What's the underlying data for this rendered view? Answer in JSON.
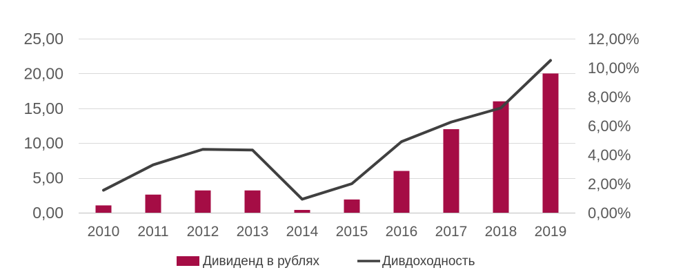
{
  "chart_data": {
    "type": "bar",
    "categories": [
      "2010",
      "2011",
      "2012",
      "2013",
      "2014",
      "2015",
      "2016",
      "2017",
      "2018",
      "2019"
    ],
    "series": [
      {
        "name": "Дивиденд в рублях",
        "chart_type": "bar",
        "axis": "left",
        "color": "#A50D45",
        "values": [
          1.05,
          2.6,
          3.2,
          3.2,
          0.4,
          1.9,
          6.0,
          12.0,
          16.0,
          20.0
        ]
      },
      {
        "name": "Дивдоходность",
        "chart_type": "line",
        "axis": "right",
        "color": "#404040",
        "values": [
          0.0155,
          0.033,
          0.0437,
          0.0432,
          0.0093,
          0.02,
          0.049,
          0.0625,
          0.0722,
          0.105
        ]
      }
    ],
    "y_left": {
      "ylim": [
        0,
        25
      ],
      "ticks": [
        0,
        5,
        10,
        15,
        20,
        25
      ],
      "tick_labels": [
        "0,00",
        "5,00",
        "10,00",
        "15,00",
        "20,00",
        "25,00"
      ]
    },
    "y_right": {
      "ylim": [
        0,
        0.12
      ],
      "ticks": [
        0,
        0.02,
        0.04,
        0.06,
        0.08,
        0.1,
        0.12
      ],
      "tick_labels": [
        "0,00%",
        "2,00%",
        "4,00%",
        "6,00%",
        "8,00%",
        "10,00%",
        "12,00%"
      ]
    },
    "grid": true,
    "legend": "bottom",
    "title": "",
    "xlabel": "",
    "ylabel": ""
  }
}
